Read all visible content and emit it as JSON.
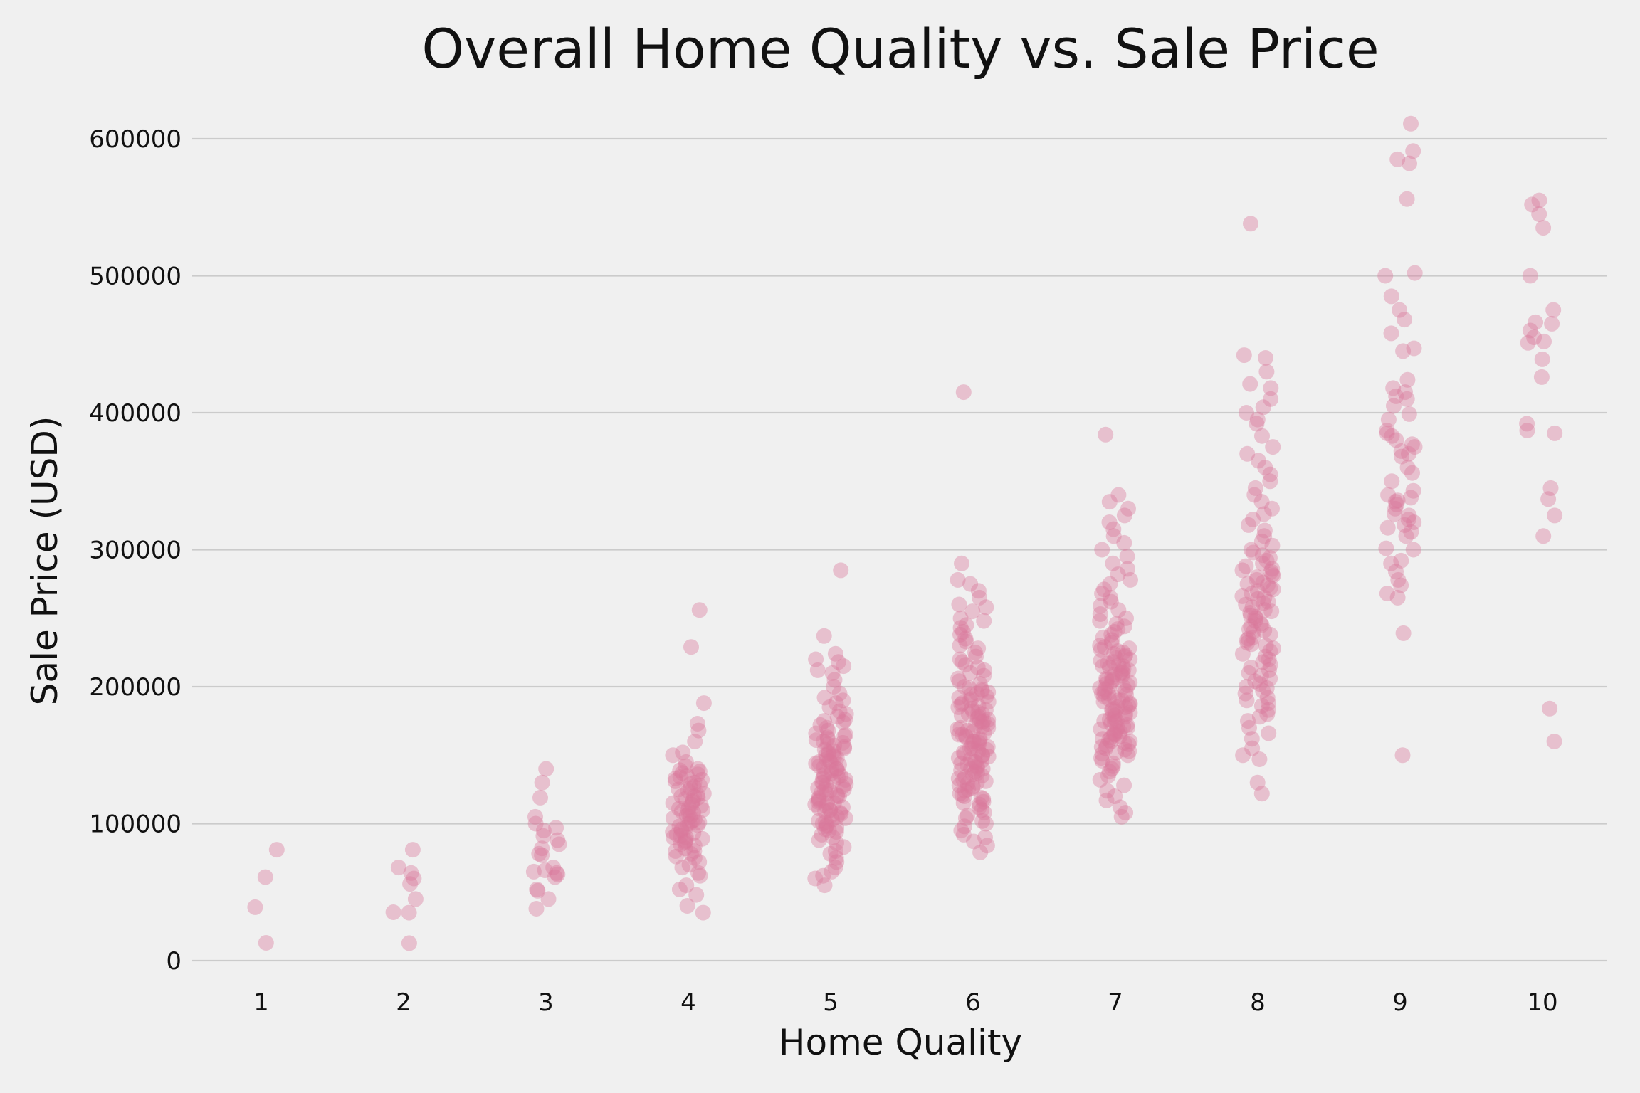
{
  "chart_data": {
    "type": "scatter",
    "title": "Overall Home Quality vs. Sale Price",
    "xlabel": "Home Quality",
    "ylabel": "Sale Price (USD)",
    "categories": [
      "1",
      "2",
      "3",
      "4",
      "5",
      "6",
      "7",
      "8",
      "9",
      "10"
    ],
    "y_ticks": [
      "0",
      "100000",
      "200000",
      "300000",
      "400000",
      "500000",
      "600000"
    ],
    "ylim": [
      0,
      630000
    ],
    "grid": "horizontal",
    "legend": "none",
    "point_color": "#d9789a",
    "point_opacity": 0.4,
    "series": [
      {
        "category": "1",
        "values": [
          13000,
          39000,
          61000,
          81000
        ]
      },
      {
        "category": "2",
        "values": [
          12800,
          35000,
          35300,
          45000,
          56000,
          60000,
          64000,
          68000,
          81000
        ]
      },
      {
        "category": "3",
        "values": [
          37900,
          45000,
          51000,
          52000,
          61000,
          63000,
          64000,
          65000,
          66000,
          68000,
          77000,
          78000,
          82000,
          85000,
          88000,
          91000,
          95000,
          97000,
          100000,
          105000,
          119000,
          130000,
          140000
        ]
      },
      {
        "category": "4",
        "values": [
          35000,
          40000,
          48000,
          52000,
          55000,
          62000,
          64000,
          68000,
          70000,
          72000,
          75000,
          76000,
          78000,
          80000,
          80000,
          82000,
          84000,
          85000,
          86000,
          87000,
          88000,
          89000,
          90000,
          90000,
          91000,
          92000,
          93000,
          94000,
          95000,
          96000,
          97000,
          98000,
          99000,
          100000,
          100000,
          101000,
          102000,
          103000,
          104000,
          105000,
          106000,
          107000,
          108000,
          109000,
          110000,
          110000,
          111000,
          112000,
          113000,
          114000,
          115000,
          116000,
          117000,
          118000,
          119000,
          120000,
          120000,
          121000,
          122000,
          124000,
          125000,
          126000,
          127000,
          128000,
          129000,
          130000,
          131000,
          132000,
          133000,
          134000,
          135000,
          136000,
          137000,
          138000,
          139000,
          140000,
          142000,
          145000,
          150000,
          152000,
          160000,
          168000,
          173000,
          188000,
          229000,
          256000
        ]
      },
      {
        "category": "5",
        "values": [
          55000,
          60000,
          62000,
          65000,
          68000,
          72000,
          75000,
          78000,
          80000,
          83000,
          86000,
          88000,
          90000,
          92000,
          94000,
          95000,
          96000,
          97000,
          98000,
          99000,
          100000,
          101000,
          102000,
          103000,
          104000,
          105000,
          106000,
          107000,
          108000,
          109000,
          110000,
          110000,
          111000,
          112000,
          113000,
          114000,
          115000,
          115000,
          116000,
          117000,
          118000,
          119000,
          120000,
          120000,
          121000,
          122000,
          123000,
          124000,
          125000,
          125000,
          126000,
          127000,
          128000,
          129000,
          130000,
          130000,
          131000,
          132000,
          133000,
          134000,
          135000,
          135000,
          136000,
          137000,
          138000,
          139000,
          140000,
          140000,
          141000,
          142000,
          143000,
          144000,
          145000,
          145000,
          146000,
          147000,
          148000,
          149000,
          150000,
          150000,
          151000,
          152000,
          153000,
          154000,
          155000,
          156000,
          157000,
          158000,
          159000,
          160000,
          161000,
          162000,
          163000,
          164000,
          165000,
          166000,
          168000,
          170000,
          172000,
          174000,
          175000,
          176000,
          178000,
          180000,
          182000,
          185000,
          188000,
          190000,
          192000,
          195000,
          200000,
          205000,
          210000,
          212000,
          215000,
          218000,
          220000,
          224000,
          237000,
          285000
        ]
      },
      {
        "category": "6",
        "values": [
          79000,
          84000,
          87000,
          90000,
          92000,
          95000,
          98000,
          100000,
          102000,
          104000,
          106000,
          108000,
          110000,
          112000,
          114000,
          115000,
          116000,
          118000,
          119000,
          120000,
          121000,
          122000,
          124000,
          125000,
          126000,
          127000,
          128000,
          129000,
          130000,
          131000,
          132000,
          133000,
          134000,
          135000,
          136000,
          137000,
          138000,
          139000,
          140000,
          140000,
          141000,
          142000,
          143000,
          144000,
          145000,
          145000,
          146000,
          147000,
          148000,
          149000,
          150000,
          150000,
          151000,
          152000,
          153000,
          154000,
          155000,
          155000,
          156000,
          157000,
          158000,
          159000,
          160000,
          160000,
          161000,
          162000,
          163000,
          164000,
          165000,
          165000,
          166000,
          167000,
          168000,
          169000,
          170000,
          170000,
          171000,
          172000,
          173000,
          174000,
          175000,
          175000,
          176000,
          177000,
          178000,
          179000,
          180000,
          180000,
          181000,
          182000,
          183000,
          184000,
          185000,
          186000,
          187000,
          188000,
          189000,
          190000,
          191000,
          192000,
          193000,
          194000,
          195000,
          196000,
          197000,
          198000,
          199000,
          200000,
          202000,
          204000,
          206000,
          208000,
          210000,
          212000,
          214000,
          216000,
          218000,
          220000,
          222000,
          225000,
          228000,
          230000,
          233000,
          235000,
          238000,
          240000,
          243000,
          245000,
          248000,
          250000,
          255000,
          258000,
          260000,
          265000,
          270000,
          275000,
          278000,
          290000,
          415000
        ]
      },
      {
        "category": "7",
        "values": [
          105000,
          108000,
          112000,
          117000,
          120000,
          124000,
          128000,
          132000,
          135000,
          138000,
          140000,
          142000,
          144000,
          146000,
          148000,
          150000,
          151000,
          152000,
          153000,
          154000,
          155000,
          156000,
          157000,
          158000,
          159000,
          160000,
          160000,
          161000,
          162000,
          163000,
          164000,
          165000,
          165000,
          166000,
          167000,
          168000,
          169000,
          170000,
          170000,
          171000,
          172000,
          173000,
          174000,
          175000,
          175000,
          176000,
          177000,
          178000,
          179000,
          180000,
          180000,
          181000,
          182000,
          183000,
          184000,
          185000,
          185000,
          186000,
          187000,
          188000,
          189000,
          190000,
          190000,
          191000,
          192000,
          193000,
          194000,
          195000,
          195000,
          196000,
          197000,
          198000,
          199000,
          200000,
          200000,
          201000,
          202000,
          203000,
          204000,
          205000,
          205000,
          206000,
          207000,
          208000,
          209000,
          210000,
          210000,
          211000,
          212000,
          213000,
          214000,
          215000,
          215000,
          216000,
          217000,
          218000,
          219000,
          220000,
          221000,
          222000,
          223000,
          224000,
          225000,
          226000,
          227000,
          228000,
          229000,
          230000,
          232000,
          234000,
          236000,
          238000,
          240000,
          242000,
          244000,
          246000,
          248000,
          250000,
          253000,
          256000,
          259000,
          262000,
          265000,
          268000,
          271000,
          275000,
          278000,
          282000,
          286000,
          290000,
          295000,
          300000,
          305000,
          310000,
          315000,
          320000,
          325000,
          330000,
          335000,
          340000,
          384000
        ]
      },
      {
        "category": "8",
        "values": [
          122000,
          130000,
          147000,
          150000,
          155000,
          162000,
          166000,
          170000,
          175000,
          178000,
          180000,
          183000,
          186000,
          188000,
          190000,
          192000,
          195000,
          197000,
          199000,
          200000,
          202000,
          204000,
          206000,
          208000,
          210000,
          212000,
          214000,
          216000,
          218000,
          220000,
          222000,
          224000,
          226000,
          228000,
          230000,
          231000,
          232000,
          234000,
          235000,
          236000,
          238000,
          240000,
          241000,
          242000,
          244000,
          245000,
          246000,
          248000,
          250000,
          251000,
          252000,
          254000,
          255000,
          256000,
          258000,
          260000,
          261000,
          262000,
          264000,
          265000,
          266000,
          268000,
          270000,
          271000,
          272000,
          274000,
          275000,
          276000,
          278000,
          280000,
          281000,
          282000,
          284000,
          285000,
          286000,
          288000,
          290000,
          292000,
          294000,
          296000,
          298000,
          300000,
          303000,
          306000,
          310000,
          314000,
          318000,
          322000,
          326000,
          330000,
          335000,
          340000,
          345000,
          350000,
          355000,
          360000,
          365000,
          370000,
          375000,
          383000,
          392000,
          395000,
          400000,
          404000,
          410000,
          418000,
          421000,
          430000,
          440000,
          442000,
          538000
        ]
      },
      {
        "category": "9",
        "values": [
          150000,
          239000,
          265000,
          268000,
          274000,
          278000,
          284000,
          290000,
          292000,
          300000,
          301000,
          310000,
          313000,
          316000,
          318000,
          320000,
          322000,
          325000,
          326000,
          330000,
          333000,
          335000,
          336000,
          338000,
          340000,
          343000,
          350000,
          356000,
          360000,
          368000,
          370000,
          372000,
          375000,
          377000,
          380000,
          383000,
          385000,
          387000,
          395000,
          399000,
          405000,
          410000,
          412000,
          415000,
          418000,
          424000,
          445000,
          447000,
          458000,
          468000,
          475000,
          485000,
          500000,
          502000,
          556000,
          582000,
          585000,
          591000,
          611000
        ]
      },
      {
        "category": "10",
        "values": [
          160000,
          184000,
          310000,
          325000,
          337000,
          345000,
          385000,
          387000,
          392000,
          426000,
          439000,
          451000,
          452000,
          455000,
          460000,
          465000,
          466000,
          475000,
          500000,
          535000,
          545000,
          552000,
          555000
        ]
      }
    ]
  }
}
